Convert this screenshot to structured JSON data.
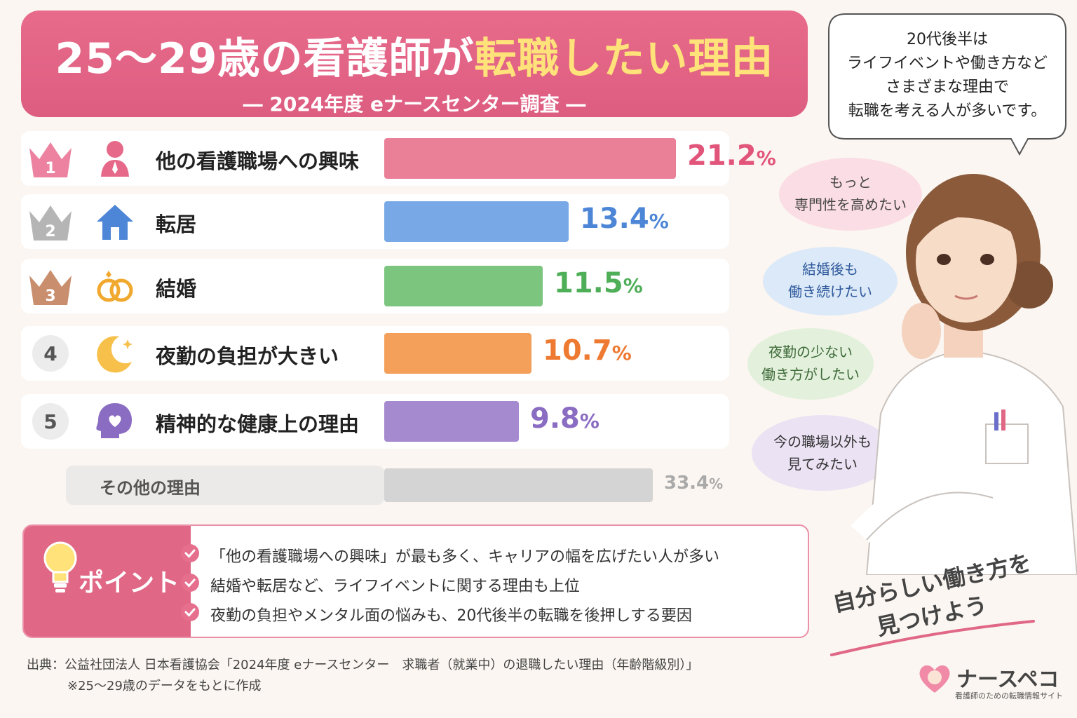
{
  "title": {
    "prefix": "25〜29歳の看護師が",
    "highlight": "転職したい理由",
    "subtitle": "― 2024年度 eナースセンター調査 ―"
  },
  "chart_data": {
    "type": "bar",
    "orientation": "horizontal",
    "categories": [
      "他の看護職場への興味",
      "転居",
      "結婚",
      "夜勤の負担が大きい",
      "精神的な健康上の理由",
      "その他の理由"
    ],
    "values": [
      21.2,
      13.4,
      11.5,
      10.7,
      9.8,
      33.4
    ],
    "unit": "%",
    "ranks": [
      "1",
      "2",
      "3",
      "4",
      "5",
      ""
    ],
    "colors": [
      "#ea7f98",
      "#79a8e6",
      "#7bc57f",
      "#f5a05a",
      "#a58ad0",
      "#d4d4d4"
    ],
    "value_colors": [
      "#e2557b",
      "#4d86d6",
      "#4fae58",
      "#ee7a32",
      "#8a6cc2",
      "#aaaaaa"
    ],
    "icons": [
      "person-icon",
      "house-icon",
      "rings-icon",
      "moon-icon",
      "mind-heart-icon",
      ""
    ]
  },
  "points": {
    "heading": "ポイント",
    "items": [
      "「他の看護職場への興味」が最も多く、キャリアの幅を広げたい人が多い",
      "結婚や転居など、ライフイベントに関する理由も上位",
      "夜勤の負担やメンタル面の悩みも、20代後半の転職を後押しする要因"
    ]
  },
  "source": {
    "line": "出典：公益社団法人 日本看護協会「2024年度 eナースセンター　求職者（就業中）の退職したい理由（年齢階級別）」",
    "note": "※25〜29歳のデータをもとに作成"
  },
  "speech": {
    "lines": [
      "20代後半は",
      "ライフイベントや働き方など",
      "さまざまな理由で",
      "転職を考える人が多いです。"
    ]
  },
  "thoughts": [
    {
      "lines": [
        "もっと",
        "専門性を高めたい"
      ],
      "color": "#fbdde5"
    },
    {
      "lines": [
        "結婚後も",
        "働き続けたい"
      ],
      "color": "#dce9f8"
    },
    {
      "lines": [
        "夜勤の少ない",
        "働き方がしたい"
      ],
      "color": "#e3f1dc"
    },
    {
      "lines": [
        "今の職場以外も",
        "見てみたい"
      ],
      "color": "#ebe2f4"
    }
  ],
  "slogan": [
    "自分らしい働き方を",
    "見つけよう"
  ],
  "brand": {
    "name": "ナースペコ",
    "tagline": "看護師のための転職情報サイト"
  }
}
